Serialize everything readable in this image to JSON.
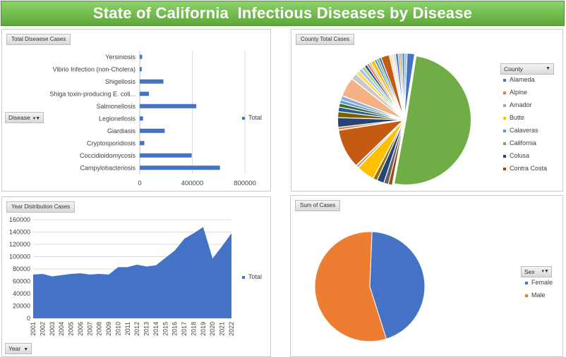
{
  "title": "State of California  Infectious Diseases by Disease",
  "panels": {
    "disease": {
      "label": "Total Diseaese Cases",
      "filter_label": "Disease",
      "legend": "Total",
      "chart_data": {
        "type": "bar",
        "orientation": "horizontal",
        "categories": [
          "Campylobacteriosis",
          "Coccidioidomycosis",
          "Cryptosporidiosis",
          "Giardiasis",
          "Legionellosis",
          "Salmonellosis",
          "Shiga toxin-producing E. coli...",
          "Shigellosis",
          "Vibrio Infection (non-Cholera)",
          "Yersiniosis"
        ],
        "series": [
          {
            "name": "Total",
            "values": [
              610000,
              395000,
              35000,
              190000,
              25000,
              430000,
              70000,
              180000,
              15000,
              18000
            ]
          }
        ],
        "xlim": [
          0,
          950000
        ],
        "xticks": [
          0,
          400000,
          800000
        ],
        "grid": true,
        "legend_position": "right",
        "color": "#4472c4"
      }
    },
    "county": {
      "label": "County Total Cases",
      "filter_label": "County",
      "legend_items": [
        {
          "label": "Alameda",
          "color": "#4472c4"
        },
        {
          "label": "Alpine",
          "color": "#ed7d31"
        },
        {
          "label": "Amador",
          "color": "#a5a5a5"
        },
        {
          "label": "Butte",
          "color": "#ffc000"
        },
        {
          "label": "Calaveras",
          "color": "#5b9bd5"
        },
        {
          "label": "California",
          "color": "#70ad47"
        },
        {
          "label": "Colusa",
          "color": "#264478"
        },
        {
          "label": "Contra Costa",
          "color": "#9e480e"
        }
      ],
      "chart_data": {
        "type": "pie",
        "slices": [
          {
            "label": "Alameda",
            "value": 1.8,
            "color": "#4472c4"
          },
          {
            "label": "California",
            "value": 49.2,
            "color": "#70ad47"
          },
          {
            "label": "",
            "value": 0.9,
            "color": "#9e480e"
          },
          {
            "label": "",
            "value": 1.1,
            "color": "#636363"
          },
          {
            "label": "",
            "value": 1.7,
            "color": "#264478"
          },
          {
            "label": "",
            "value": 1.0,
            "color": "#997300"
          },
          {
            "label": "",
            "value": 4.3,
            "color": "#ffc000"
          },
          {
            "label": "",
            "value": 0.6,
            "color": "#a5a5a5"
          },
          {
            "label": "",
            "value": 9.5,
            "color": "#c55a11"
          },
          {
            "label": "",
            "value": 0.6,
            "color": "#ed7d31"
          },
          {
            "label": "",
            "value": 2.3,
            "color": "#264478"
          },
          {
            "label": "",
            "value": 1.4,
            "color": "#7f6000"
          },
          {
            "label": "",
            "value": 1.1,
            "color": "#255e91"
          },
          {
            "label": "",
            "value": 0.9,
            "color": "#43682b"
          },
          {
            "label": "",
            "value": 0.8,
            "color": "#5b9bd5"
          },
          {
            "label": "",
            "value": 1.0,
            "color": "#8faadc"
          },
          {
            "label": "",
            "value": 4.6,
            "color": "#f4b183"
          },
          {
            "label": "",
            "value": 1.5,
            "color": "#c9c9c9"
          },
          {
            "label": "",
            "value": 1.0,
            "color": "#ffd966"
          },
          {
            "label": "",
            "value": 0.8,
            "color": "#9dc3e6"
          },
          {
            "label": "",
            "value": 0.8,
            "color": "#a9d18e"
          },
          {
            "label": "",
            "value": 0.7,
            "color": "#2f5597"
          },
          {
            "label": "",
            "value": 0.6,
            "color": "#ed7d31"
          },
          {
            "label": "",
            "value": 0.5,
            "color": "#bfbfbf"
          },
          {
            "label": "",
            "value": 0.9,
            "color": "#ffc000"
          },
          {
            "label": "",
            "value": 0.6,
            "color": "#5b9bd5"
          },
          {
            "label": "",
            "value": 0.5,
            "color": "#70ad47"
          },
          {
            "label": "",
            "value": 0.6,
            "color": "#4472c4"
          },
          {
            "label": "",
            "value": 2.0,
            "color": "#c55a11"
          },
          {
            "label": "",
            "value": 0.5,
            "color": "#d9d9d9"
          },
          {
            "label": "",
            "value": 0.5,
            "color": "#ffe699"
          },
          {
            "label": "",
            "value": 0.5,
            "color": "#bdd7ee"
          },
          {
            "label": "",
            "value": 0.6,
            "color": "#4472c4"
          },
          {
            "label": "",
            "value": 0.4,
            "color": "#ed7d31"
          },
          {
            "label": "",
            "value": 0.5,
            "color": "#a5a5a5"
          },
          {
            "label": "",
            "value": 0.7,
            "color": "#5b9bd5"
          },
          {
            "label": "",
            "value": 0.5,
            "color": "#8faadc"
          }
        ],
        "legend_position": "right",
        "explode": true
      }
    },
    "year": {
      "label": "Year Distribution Cases",
      "filter_label": "Year",
      "legend": "Total",
      "chart_data": {
        "type": "area",
        "x": [
          "2001",
          "2002",
          "2003",
          "2004",
          "2005",
          "2006",
          "2007",
          "2008",
          "2009",
          "2010",
          "2011",
          "2012",
          "2013",
          "2014",
          "2015",
          "2016",
          "2017",
          "2018",
          "2019",
          "2020",
          "2021",
          "2022"
        ],
        "series": [
          {
            "name": "Total",
            "values": [
              71000,
              72000,
              68000,
              70000,
              72000,
              73000,
              71000,
              72000,
              71000,
              83000,
              83000,
              87000,
              84000,
              86000,
              98000,
              110000,
              129000,
              138000,
              148000,
              97000,
              117000,
              138000
            ]
          }
        ],
        "ylim": [
          0,
          160000
        ],
        "yticks": [
          0,
          20000,
          40000,
          60000,
          80000,
          100000,
          120000,
          140000,
          160000
        ],
        "grid": true,
        "legend_position": "right",
        "color": "#4472c4"
      }
    },
    "sex": {
      "label": "Sum of Cases",
      "filter_label": "Sex",
      "legend_items": [
        {
          "label": "Female",
          "color": "#4472c4"
        },
        {
          "label": "Male",
          "color": "#ed7d31"
        }
      ],
      "chart_data": {
        "type": "pie",
        "slices": [
          {
            "label": "Female",
            "value": 44.5,
            "color": "#4472c4"
          },
          {
            "label": "Male",
            "value": 55.5,
            "color": "#ed7d31"
          }
        ],
        "legend_position": "right"
      }
    }
  }
}
